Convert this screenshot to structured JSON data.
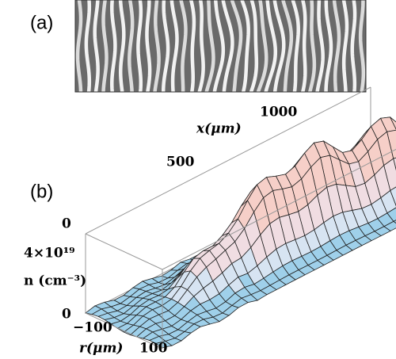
{
  "panel_a": {
    "label": "(a)"
  },
  "panel_b": {
    "label": "(b)",
    "x_axis": {
      "title": "x(μm)",
      "ticks": [
        "0",
        "500",
        "1000"
      ]
    },
    "n_axis": {
      "title": "n (cm⁻³)",
      "ticks": [
        "0",
        "4×10¹⁹"
      ]
    },
    "r_axis": {
      "title": "r(μm)",
      "ticks": [
        "−100",
        "100"
      ]
    }
  }
}
